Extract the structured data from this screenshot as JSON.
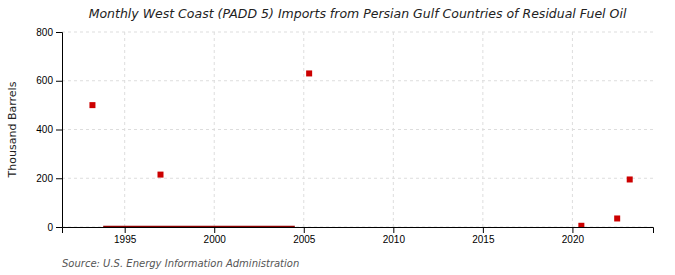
{
  "chart_data": {
    "type": "scatter",
    "title": "Monthly West Coast (PADD 5) Imports from Persian Gulf Countries of Residual Fuel Oil",
    "y_label": "Thousand Barrels",
    "annotations": [
      "Source: U.S. Energy Information Administration"
    ],
    "series": [
      {
        "type": "scatter",
        "color": "#cc0000",
        "marker": "square",
        "x": [
          1993.2,
          1997.0,
          2005.3,
          2020.5,
          2022.5,
          2023.2
        ],
        "values": [
          500,
          215,
          630,
          5,
          35,
          195
        ]
      },
      {
        "type": "line",
        "color": "#8b0000",
        "x": [
          1993.8,
          2004.5
        ],
        "values": [
          0,
          0
        ]
      }
    ],
    "xlim": [
      1991.5,
      2024.5
    ],
    "ylim": [
      0,
      800
    ],
    "xticks": [
      1995,
      2000,
      2005,
      2010,
      2015,
      2020
    ],
    "yticks": [
      0,
      200,
      400,
      600,
      800
    ],
    "grid": true
  }
}
